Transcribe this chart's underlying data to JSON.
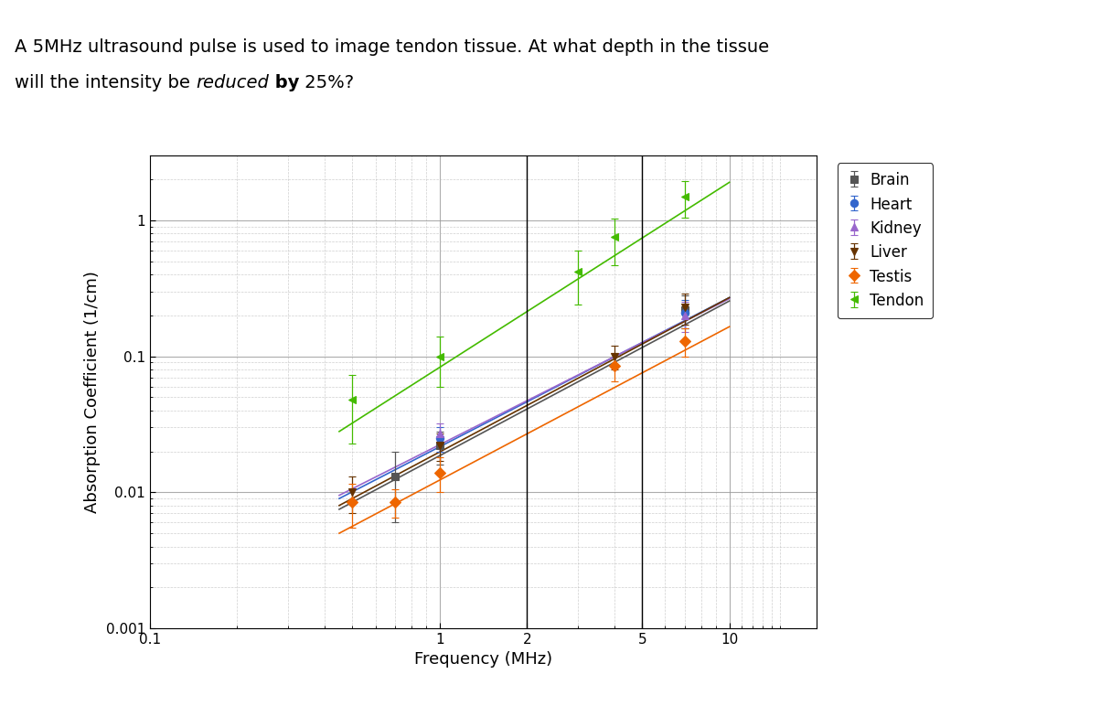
{
  "title_line1": "A 5MHz ultrasound pulse is used to image tendon tissue. At what depth in the tissue",
  "title_line2_pre": "will the intensity be ",
  "title_line2_italic": "reduced",
  "title_line2_bold": " by",
  "title_line2_end": " 25%?",
  "xlabel": "Frequency (MHz)",
  "ylabel": "Absorption Coefficient (1/cm)",
  "xlim": [
    0.1,
    20
  ],
  "ylim": [
    0.001,
    3
  ],
  "series": {
    "Brain": {
      "color": "#555555",
      "marker": "s",
      "x": [
        0.7,
        1.0,
        7.0
      ],
      "y": [
        0.013,
        0.022,
        0.22
      ],
      "yerr": [
        0.007,
        0.006,
        0.06
      ],
      "fit_x": [
        0.45,
        10
      ],
      "fit_y": [
        0.0075,
        0.255
      ]
    },
    "Heart": {
      "color": "#3366cc",
      "marker": "o",
      "x": [
        1.0,
        7.0
      ],
      "y": [
        0.025,
        0.21
      ],
      "yerr": [
        0.005,
        0.05
      ],
      "fit_x": [
        0.45,
        10
      ],
      "fit_y": [
        0.009,
        0.27
      ]
    },
    "Kidney": {
      "color": "#9966cc",
      "marker": "^",
      "x": [
        1.0,
        7.0
      ],
      "y": [
        0.027,
        0.2
      ],
      "yerr": [
        0.005,
        0.05
      ],
      "fit_x": [
        0.45,
        10
      ],
      "fit_y": [
        0.0095,
        0.265
      ]
    },
    "Liver": {
      "color": "#663300",
      "marker": "v",
      "x": [
        0.5,
        1.0,
        4.0,
        7.0
      ],
      "y": [
        0.01,
        0.022,
        0.1,
        0.23
      ],
      "yerr": [
        0.003,
        0.005,
        0.02,
        0.06
      ],
      "fit_x": [
        0.45,
        10
      ],
      "fit_y": [
        0.008,
        0.27
      ]
    },
    "Testis": {
      "color": "#ee6600",
      "marker": "D",
      "x": [
        0.5,
        0.7,
        1.0,
        4.0,
        7.0
      ],
      "y": [
        0.0085,
        0.0085,
        0.014,
        0.085,
        0.13
      ],
      "yerr": [
        0.003,
        0.002,
        0.004,
        0.02,
        0.03
      ],
      "fit_x": [
        0.45,
        10
      ],
      "fit_y": [
        0.005,
        0.165
      ]
    },
    "Tendon": {
      "color": "#44bb00",
      "marker": "<",
      "x": [
        0.5,
        1.0,
        3.0,
        4.0,
        7.0
      ],
      "y": [
        0.048,
        0.1,
        0.42,
        0.75,
        1.5
      ],
      "yerr": [
        0.025,
        0.04,
        0.18,
        0.28,
        0.45
      ],
      "fit_x": [
        0.45,
        10
      ],
      "fit_y": [
        0.028,
        1.9
      ]
    }
  },
  "vertical_lines": [
    2.0,
    5.0
  ],
  "background_color": "#ffffff",
  "grid_major_color": "#999999",
  "grid_minor_color": "#bbbbbb",
  "title_fontsize": 14,
  "axis_fontsize": 13,
  "tick_fontsize": 11
}
